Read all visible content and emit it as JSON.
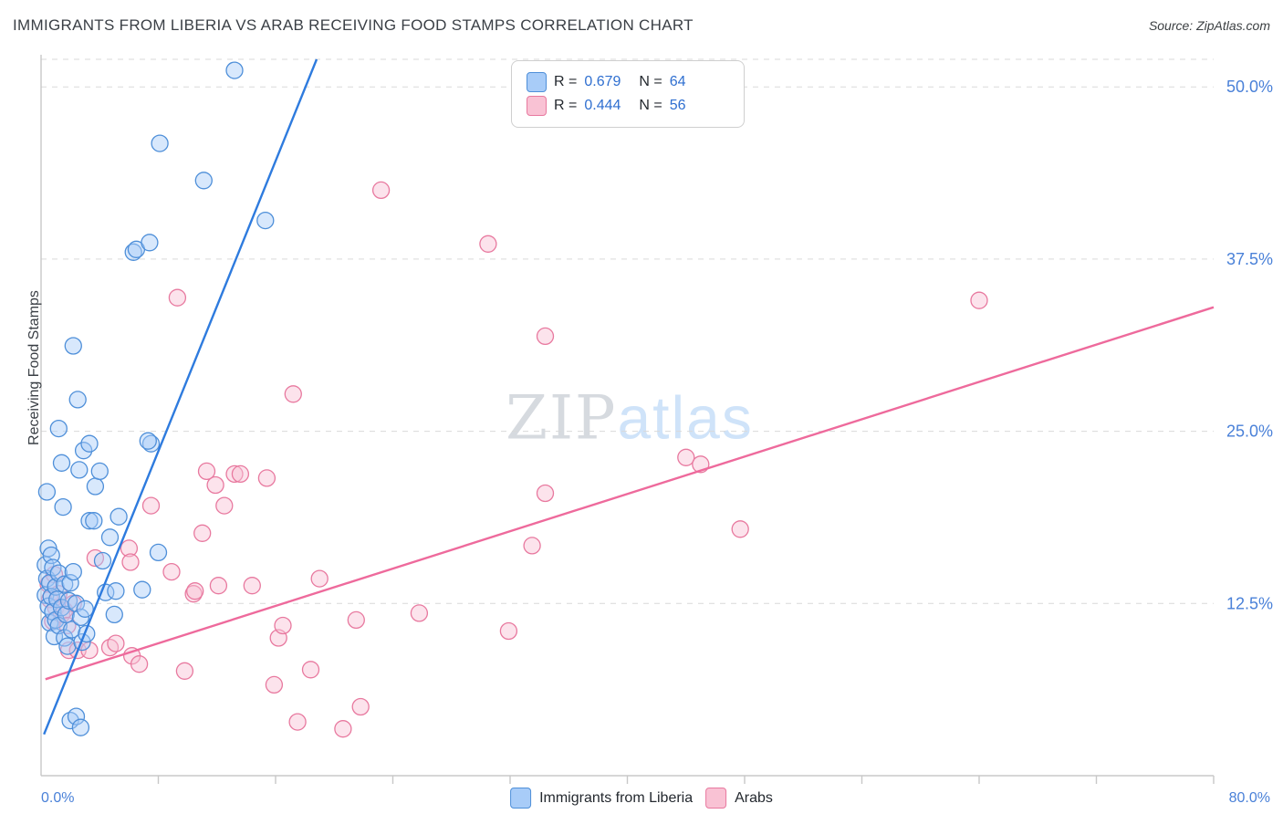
{
  "header": {
    "title": "IMMIGRANTS FROM LIBERIA VS ARAB RECEIVING FOOD STAMPS CORRELATION CHART",
    "source": "Source: ZipAtlas.com"
  },
  "legend_box": {
    "series": [
      {
        "r_label": "R =",
        "r": "0.679",
        "n_label": "N =",
        "n": "64"
      },
      {
        "r_label": "R =",
        "r": "0.444",
        "n_label": "N =",
        "n": "56"
      }
    ]
  },
  "axes": {
    "y_label": "Receiving Food Stamps",
    "y_ticks": [
      {
        "label": "50.0%",
        "value": 50
      },
      {
        "label": "37.5%",
        "value": 37.5
      },
      {
        "label": "25.0%",
        "value": 25
      },
      {
        "label": "12.5%",
        "value": 12.5
      }
    ],
    "x_min_label": "0.0%",
    "x_max_label": "80.0%"
  },
  "bottom_legend": [
    {
      "label": "Immigrants from Liberia"
    },
    {
      "label": "Arabs"
    }
  ],
  "watermark": {
    "part1": "ZIP",
    "part2": "atlas"
  },
  "colors": {
    "grid": "#d9d9d9",
    "axis_line": "#c8c8c8",
    "axis_text": "#4a81d8",
    "blue_fill": "#a8ccf8",
    "blue_stroke": "#4e8fd9",
    "blue_line": "#2e7bde",
    "pink_fill": "#f9c2d4",
    "pink_stroke": "#e8799f",
    "pink_line": "#ee6a9c"
  },
  "chart_data": {
    "type": "scatter",
    "title": "Immigrants from Liberia vs Arab Receiving Food Stamps",
    "xlabel": "",
    "ylabel": "Receiving Food Stamps",
    "xlim": [
      0,
      80
    ],
    "ylim": [
      0,
      52
    ],
    "y_gridlines": [
      12.5,
      25,
      37.5,
      50
    ],
    "x_ticks": [
      8,
      16,
      24,
      32,
      40,
      48,
      56,
      64,
      72,
      80
    ],
    "grid": "dashed-horizontal",
    "legend_position": "top-center",
    "series": [
      {
        "name": "Arabs",
        "R": 0.444,
        "N": 56,
        "trend": {
          "x1": 0.3,
          "y1": 7.0,
          "x2": 80.0,
          "y2": 34.0
        },
        "points": [
          [
            0.5,
            13.9
          ],
          [
            0.6,
            12.8
          ],
          [
            0.8,
            11.2
          ],
          [
            0.9,
            14.6
          ],
          [
            1.0,
            12.2
          ],
          [
            1.2,
            13.2
          ],
          [
            1.4,
            11.7
          ],
          [
            1.6,
            12.0
          ],
          [
            1.8,
            10.9
          ],
          [
            1.9,
            9.1
          ],
          [
            2.2,
            12.5
          ],
          [
            2.5,
            9.1
          ],
          [
            3.3,
            9.1
          ],
          [
            3.7,
            15.8
          ],
          [
            4.7,
            9.3
          ],
          [
            5.1,
            9.6
          ],
          [
            6.0,
            16.5
          ],
          [
            6.1,
            15.5
          ],
          [
            6.2,
            8.7
          ],
          [
            6.7,
            8.1
          ],
          [
            7.5,
            19.6
          ],
          [
            8.9,
            14.8
          ],
          [
            9.3,
            34.7
          ],
          [
            9.8,
            7.6
          ],
          [
            10.4,
            13.2
          ],
          [
            10.5,
            13.4
          ],
          [
            11.0,
            17.6
          ],
          [
            11.3,
            22.1
          ],
          [
            11.9,
            21.1
          ],
          [
            12.1,
            13.8
          ],
          [
            12.5,
            19.6
          ],
          [
            13.2,
            21.9
          ],
          [
            13.6,
            21.9
          ],
          [
            14.4,
            13.8
          ],
          [
            15.4,
            21.6
          ],
          [
            15.9,
            6.6
          ],
          [
            16.2,
            10.0
          ],
          [
            16.5,
            10.9
          ],
          [
            17.2,
            27.7
          ],
          [
            17.5,
            3.9
          ],
          [
            18.4,
            7.7
          ],
          [
            19.0,
            14.3
          ],
          [
            20.6,
            3.4
          ],
          [
            21.5,
            11.3
          ],
          [
            21.8,
            5.0
          ],
          [
            23.2,
            42.5
          ],
          [
            25.8,
            11.8
          ],
          [
            30.5,
            38.6
          ],
          [
            31.9,
            10.5
          ],
          [
            33.5,
            16.7
          ],
          [
            34.4,
            31.9
          ],
          [
            44.0,
            23.1
          ],
          [
            45.0,
            22.6
          ],
          [
            47.7,
            17.9
          ],
          [
            64.0,
            34.5
          ],
          [
            34.4,
            20.5
          ]
        ]
      },
      {
        "name": "Immigrants from Liberia",
        "R": 0.679,
        "N": 64,
        "trend": {
          "x1": 0.2,
          "y1": 3.0,
          "x2": 18.8,
          "y2": 52.0
        },
        "points": [
          [
            0.3,
            15.3
          ],
          [
            0.3,
            13.1
          ],
          [
            0.4,
            20.6
          ],
          [
            0.4,
            14.3
          ],
          [
            0.5,
            16.5
          ],
          [
            0.5,
            12.3
          ],
          [
            0.6,
            14.0
          ],
          [
            0.6,
            11.1
          ],
          [
            0.7,
            16.0
          ],
          [
            0.7,
            13.0
          ],
          [
            0.8,
            15.1
          ],
          [
            0.8,
            11.9
          ],
          [
            0.9,
            10.1
          ],
          [
            1.0,
            13.7
          ],
          [
            1.0,
            11.3
          ],
          [
            1.1,
            12.8
          ],
          [
            1.2,
            25.2
          ],
          [
            1.2,
            14.7
          ],
          [
            1.2,
            10.9
          ],
          [
            1.4,
            22.7
          ],
          [
            1.4,
            12.2
          ],
          [
            1.5,
            19.5
          ],
          [
            1.6,
            13.9
          ],
          [
            1.6,
            10.0
          ],
          [
            1.7,
            11.7
          ],
          [
            1.8,
            9.4
          ],
          [
            1.9,
            12.7
          ],
          [
            2.0,
            14.0
          ],
          [
            2.0,
            4.0
          ],
          [
            2.1,
            10.6
          ],
          [
            2.2,
            31.2
          ],
          [
            2.2,
            14.8
          ],
          [
            2.4,
            12.5
          ],
          [
            2.4,
            4.3
          ],
          [
            2.5,
            27.3
          ],
          [
            2.6,
            22.2
          ],
          [
            2.7,
            11.5
          ],
          [
            2.7,
            3.5
          ],
          [
            2.8,
            9.7
          ],
          [
            2.9,
            23.6
          ],
          [
            3.0,
            12.1
          ],
          [
            3.1,
            10.3
          ],
          [
            3.3,
            24.1
          ],
          [
            3.3,
            18.5
          ],
          [
            3.6,
            18.5
          ],
          [
            3.7,
            21.0
          ],
          [
            4.0,
            22.1
          ],
          [
            4.2,
            15.6
          ],
          [
            4.4,
            13.3
          ],
          [
            4.7,
            17.3
          ],
          [
            5.0,
            11.7
          ],
          [
            5.1,
            13.4
          ],
          [
            5.3,
            18.8
          ],
          [
            6.3,
            38.0
          ],
          [
            6.5,
            38.2
          ],
          [
            6.9,
            13.5
          ],
          [
            7.4,
            38.7
          ],
          [
            7.5,
            24.1
          ],
          [
            8.0,
            16.2
          ],
          [
            8.1,
            45.9
          ],
          [
            11.1,
            43.2
          ],
          [
            13.2,
            51.2
          ],
          [
            15.3,
            40.3
          ],
          [
            7.3,
            24.3
          ]
        ]
      }
    ]
  }
}
